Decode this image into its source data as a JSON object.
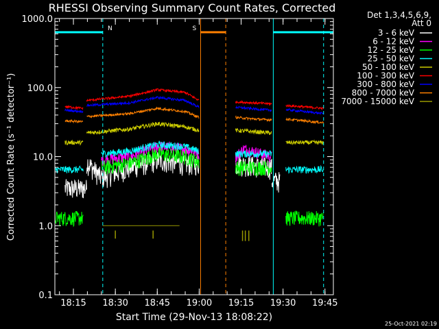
{
  "chart_data": {
    "type": "line",
    "title": "RHESSI Observing Summary Count Rates, Corrected",
    "xlabel": "Start Time (29-Nov-13 18:08:22)",
    "ylabel": "Corrected Count Rate (s⁻¹ detector⁻¹)",
    "yscale": "log",
    "ylim": [
      0.1,
      1000
    ],
    "xlim": [
      "18:08:22",
      "19:48:00"
    ],
    "ytick_labels": [
      "0.1",
      "1.0",
      "10.0",
      "100.0",
      "1000.0"
    ],
    "xtick_labels": [
      "18:15",
      "18:30",
      "18:45",
      "19:00",
      "19:15",
      "19:30",
      "19:45"
    ],
    "legend": {
      "placement": "right",
      "header": [
        "Det 1,3,4,5,6,9,",
        "Att 0"
      ]
    },
    "flags": [
      {
        "label": "N",
        "color": "#00ffff",
        "segments": [
          [
            "18:08:22",
            "18:25:30"
          ],
          [
            "19:26:30",
            "19:48:00"
          ]
        ]
      },
      {
        "label": "S",
        "color": "#ff8000",
        "segments": [
          [
            "19:00:30",
            "19:09:30"
          ]
        ]
      }
    ],
    "vlines": [
      {
        "t": "18:08:22",
        "style": "solid",
        "color": "#00ffff"
      },
      {
        "t": "18:25:30",
        "style": "dashed",
        "color": "#00ffff"
      },
      {
        "t": "19:00:30",
        "style": "solid",
        "color": "#ff8000"
      },
      {
        "t": "19:09:30",
        "style": "dashed",
        "color": "#ff8000"
      },
      {
        "t": "19:26:30",
        "style": "solid",
        "color": "#00ffff"
      },
      {
        "t": "19:44:30",
        "style": "dashed",
        "color": "#00ffff"
      }
    ],
    "series": [
      {
        "name": "3 - 6 keV",
        "color": "#ffffff",
        "noise": 0.35,
        "segments": [
          {
            "t": [
              "18:12:00",
              "18:19:45"
            ],
            "v": [
              3.5,
              3.5
            ]
          },
          {
            "t": [
              "18:19:45",
              "18:25:00",
              "18:35:00",
              "18:45:00",
              "18:55:00",
              "19:00:00"
            ],
            "v": [
              8.5,
              5,
              7,
              9,
              8,
              8
            ]
          },
          {
            "t": [
              "19:13:00",
              "19:26:00"
            ],
            "v": [
              8,
              7
            ]
          },
          {
            "t": [
              "19:26:00",
              "19:29:00"
            ],
            "v": [
              4.5,
              4.5
            ]
          }
        ]
      },
      {
        "name": "6 - 12 keV",
        "color": "#ff00ff",
        "noise": 0.2,
        "segments": [
          {
            "t": [
              "18:25:00",
              "18:35:00",
              "18:45:00",
              "18:55:00",
              "19:00:00"
            ],
            "v": [
              9,
              10,
              14,
              13,
              11
            ]
          },
          {
            "t": [
              "19:13:00",
              "19:16:00",
              "19:26:00"
            ],
            "v": [
              10,
              13,
              10
            ]
          }
        ]
      },
      {
        "name": "12 - 25 keV",
        "color": "#00ff00",
        "noise": 0.25,
        "segments": [
          {
            "t": [
              "18:08:30",
              "18:18:30"
            ],
            "v": [
              1.3,
              1.3
            ]
          },
          {
            "t": [
              "18:25:00",
              "18:35:00",
              "18:45:00",
              "18:55:00",
              "19:00:00"
            ],
            "v": [
              7,
              8,
              11,
              10,
              8.5
            ]
          },
          {
            "t": [
              "19:13:00",
              "19:26:00"
            ],
            "v": [
              7,
              7
            ]
          },
          {
            "t": [
              "19:31:00",
              "19:44:30"
            ],
            "v": [
              1.3,
              1.3
            ]
          }
        ]
      },
      {
        "name": "25 - 50 keV",
        "color": "#00ffff",
        "noise": 0.12,
        "segments": [
          {
            "t": [
              "18:08:30",
              "18:18:30"
            ],
            "v": [
              6.5,
              6.5
            ]
          },
          {
            "t": [
              "18:25:00",
              "18:35:00",
              "18:45:00",
              "18:55:00",
              "19:00:00"
            ],
            "v": [
              11,
              12,
              15,
              14,
              12
            ]
          },
          {
            "t": [
              "19:13:00",
              "19:26:00"
            ],
            "v": [
              11,
              11
            ]
          },
          {
            "t": [
              "19:31:00",
              "19:44:30"
            ],
            "v": [
              6.5,
              6.5
            ]
          }
        ]
      },
      {
        "name": "50 - 100 keV",
        "color": "#cccc00",
        "noise": 0.07,
        "segments": [
          {
            "t": [
              "18:12:00",
              "18:18:30"
            ],
            "v": [
              16,
              16
            ]
          },
          {
            "t": [
              "18:19:45",
              "18:35:00",
              "18:45:00",
              "18:55:00",
              "19:00:00"
            ],
            "v": [
              22,
              25,
              30,
              27,
              24
            ]
          },
          {
            "t": [
              "19:13:00",
              "19:26:00"
            ],
            "v": [
              24,
              22
            ]
          },
          {
            "t": [
              "19:31:00",
              "19:44:30"
            ],
            "v": [
              16,
              16
            ]
          }
        ]
      },
      {
        "name": "100 - 300 keV",
        "color": "#ff0000",
        "noise": 0.04,
        "segments": [
          {
            "t": [
              "18:12:00",
              "18:18:30"
            ],
            "v": [
              53,
              50
            ]
          },
          {
            "t": [
              "18:19:45",
              "18:35:00",
              "18:45:00",
              "18:55:00",
              "19:00:00"
            ],
            "v": [
              65,
              75,
              93,
              85,
              65
            ]
          },
          {
            "t": [
              "19:13:00",
              "19:20:00",
              "19:26:00"
            ],
            "v": [
              62,
              60,
              58
            ]
          },
          {
            "t": [
              "19:31:00",
              "19:44:30"
            ],
            "v": [
              55,
              50
            ]
          }
        ]
      },
      {
        "name": "300 - 800 keV",
        "color": "#0000ff",
        "noise": 0.04,
        "segments": [
          {
            "t": [
              "18:12:00",
              "18:18:30"
            ],
            "v": [
              47,
              45
            ]
          },
          {
            "t": [
              "18:19:45",
              "18:35:00",
              "18:45:00",
              "18:55:00",
              "19:00:00"
            ],
            "v": [
              55,
              60,
              72,
              65,
              52
            ]
          },
          {
            "t": [
              "19:13:00",
              "19:20:00",
              "19:26:00"
            ],
            "v": [
              52,
              49,
              47
            ]
          },
          {
            "t": [
              "19:31:00",
              "19:44:30"
            ],
            "v": [
              48,
              42
            ]
          }
        ]
      },
      {
        "name": "800 - 7000 keV",
        "color": "#ff8000",
        "noise": 0.04,
        "segments": [
          {
            "t": [
              "18:12:00",
              "18:18:30"
            ],
            "v": [
              33,
              32
            ]
          },
          {
            "t": [
              "18:19:45",
              "18:35:00",
              "18:45:00",
              "18:55:00",
              "19:00:00"
            ],
            "v": [
              38,
              42,
              50,
              45,
              37
            ]
          },
          {
            "t": [
              "19:13:00",
              "19:20:00",
              "19:26:00"
            ],
            "v": [
              37,
              35,
              34
            ]
          },
          {
            "t": [
              "19:31:00",
              "19:44:30"
            ],
            "v": [
              35,
              31
            ]
          }
        ]
      },
      {
        "name": "7000 - 15000 keV",
        "color": "#999900",
        "noise": 0.0,
        "segments": [
          {
            "t": [
              "18:25:30",
              "18:53:00"
            ],
            "v": [
              1.0,
              1.0
            ]
          }
        ],
        "ticks": [
          {
            "t": "18:30:00",
            "v": [
              0.65,
              0.85
            ]
          },
          {
            "t": "18:43:30",
            "v": [
              0.65,
              0.85
            ]
          },
          {
            "t": "19:15:30",
            "v": [
              0.6,
              0.85
            ]
          },
          {
            "t": "19:16:30",
            "v": [
              0.6,
              0.85
            ]
          },
          {
            "t": "19:17:45",
            "v": [
              0.6,
              0.85
            ]
          }
        ]
      }
    ]
  },
  "footer": {
    "timestamp": "25-Oct-2021 02:19"
  }
}
